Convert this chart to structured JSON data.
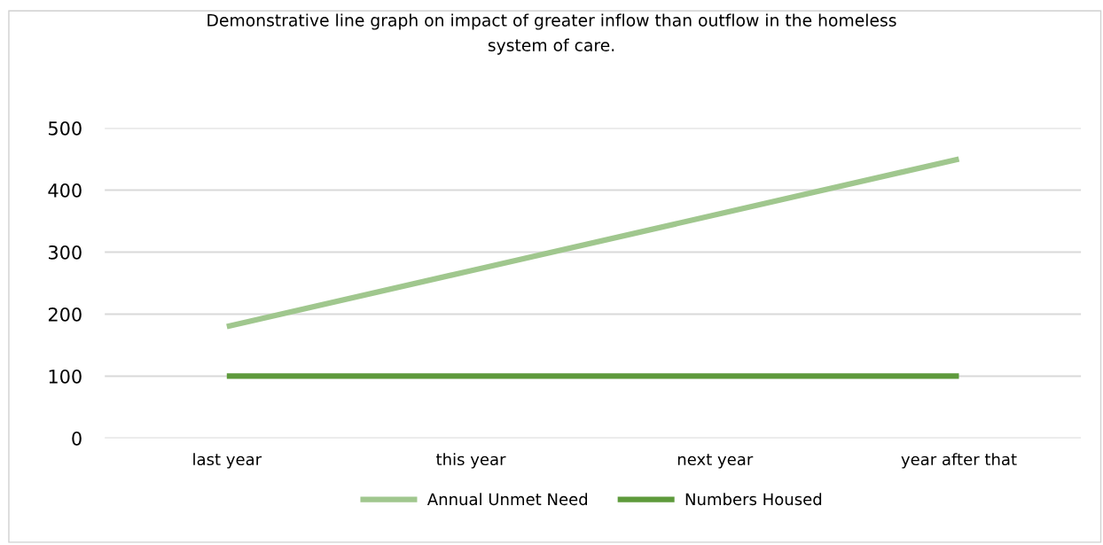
{
  "chart_data": {
    "type": "line",
    "title": "Demonstrative line graph on impact of greater inflow than outflow in the homeless\nsystem of care.",
    "categories": [
      "last year",
      "this year",
      "next year",
      "year after that"
    ],
    "series": [
      {
        "name": "Annual Unmet Need",
        "color": "#a0c78e",
        "values": [
          180,
          270,
          360,
          450
        ]
      },
      {
        "name": "Numbers Housed",
        "color": "#5e9a3c",
        "values": [
          100,
          100,
          100,
          100
        ]
      }
    ],
    "ylim": [
      0,
      500
    ],
    "yticks": [
      0,
      100,
      200,
      300,
      400,
      500
    ],
    "grid": "y",
    "legend": "bottom",
    "marker": "none",
    "line_style": "solid"
  }
}
